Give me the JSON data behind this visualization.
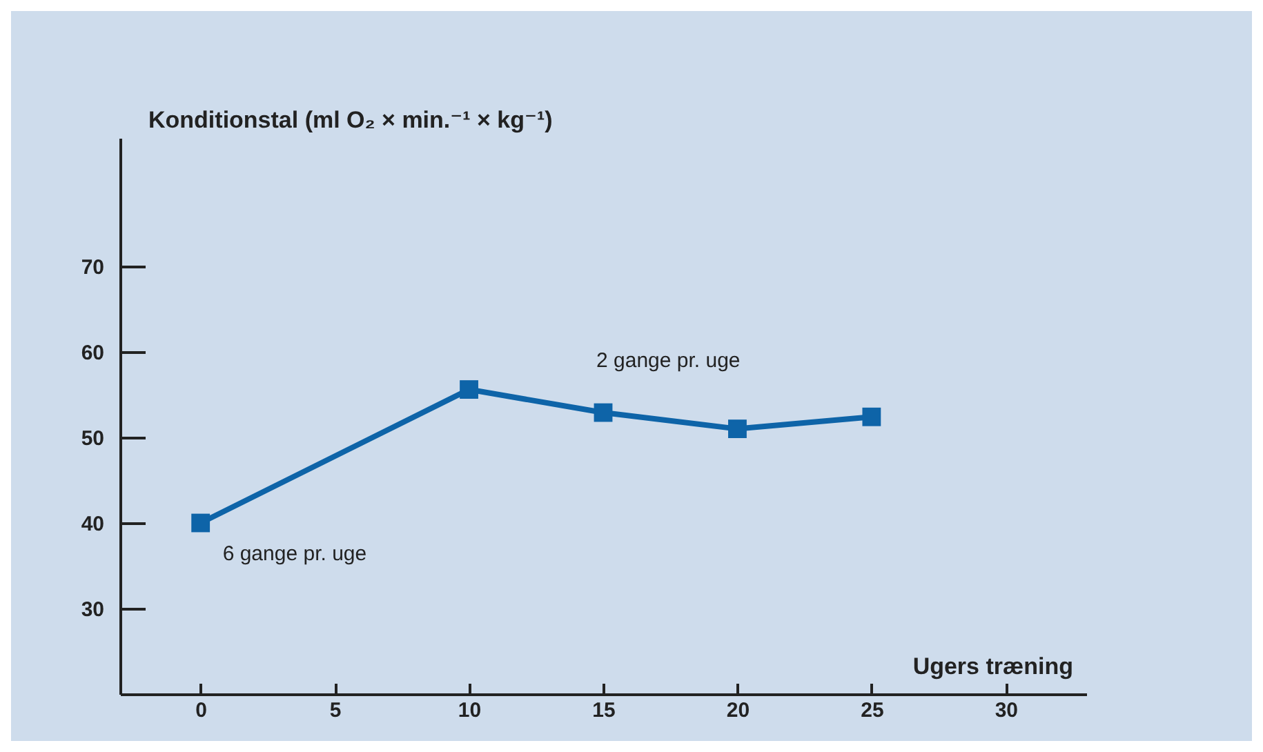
{
  "chart_data": {
    "type": "line",
    "xlabel": "Ugers træning",
    "ylabel": "Konditionstal (ml O₂ × min.⁻¹ × kg⁻¹)",
    "x": [
      0,
      10,
      15,
      20,
      25
    ],
    "series": [
      {
        "color": "#0e64a8",
        "values": [
          40.0,
          55.6,
          52.9,
          51.0,
          52.4
        ]
      }
    ],
    "xlim": [
      -3,
      33
    ],
    "xticks": [
      0,
      5,
      10,
      15,
      20,
      25,
      30
    ],
    "ylim": [
      20,
      85
    ],
    "yticks": [
      30,
      40,
      50,
      60,
      70
    ],
    "marker": "square",
    "grid": false,
    "annotations": [
      {
        "text": "6 gange pr. uge",
        "x": 0,
        "y": 40.0
      },
      {
        "text": "2 gange pr. uge",
        "x": 15,
        "y": 52.9
      }
    ]
  }
}
